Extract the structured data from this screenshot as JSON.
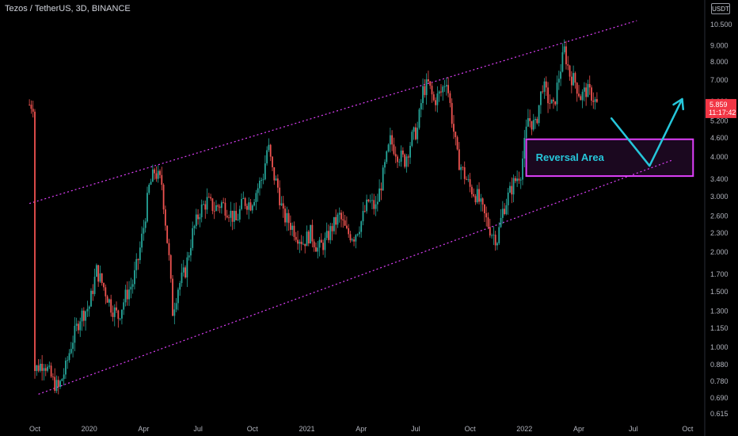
{
  "header": {
    "symbol": "Tezos / TetherUS, 3D, BINANCE",
    "currency": "USDT"
  },
  "chart_data": {
    "type": "candlestick",
    "title": "Tezos / TetherUS, 3D, BINANCE",
    "scale": "log",
    "y_ticks": [
      0.615,
      0.69,
      0.78,
      0.88,
      1.0,
      1.15,
      1.3,
      1.5,
      1.7,
      2.0,
      2.3,
      2.6,
      3.0,
      3.4,
      4.0,
      4.6,
      5.2,
      6.0,
      7.0,
      8.0,
      9.0,
      10.5
    ],
    "y_tick_labels": [
      "0.615",
      "0.690",
      "0.780",
      "0.880",
      "1.000",
      "1.150",
      "1.300",
      "1.500",
      "1.700",
      "2.000",
      "2.300",
      "2.600",
      "3.000",
      "3.400",
      "4.000",
      "4.600",
      "5.200",
      "6.000",
      "7.000",
      "8.000",
      "9.000",
      "10.500"
    ],
    "x_ticks": [
      "Oct",
      "2020",
      "Apr",
      "Jul",
      "Oct",
      "2021",
      "Apr",
      "Jul",
      "Oct",
      "2022",
      "Apr",
      "Jul",
      "Oct"
    ],
    "last_price": "5.859",
    "countdown": "11:17:42",
    "grid": false,
    "colors": {
      "up": "#26a69a",
      "down": "#ef5350",
      "channel": "#e040fb",
      "annotation": "#26c6da",
      "box": "#e040fb",
      "price_tag": "#f23645"
    },
    "series": [
      {
        "month": 0.0,
        "price": 0.85
      },
      {
        "month": 0.5,
        "price": 0.9
      },
      {
        "month": 1.0,
        "price": 0.78
      },
      {
        "month": 1.3,
        "price": 0.74
      },
      {
        "month": 1.7,
        "price": 0.86
      },
      {
        "month": 2.0,
        "price": 1.02
      },
      {
        "month": 2.5,
        "price": 1.25
      },
      {
        "month": 3.0,
        "price": 1.35
      },
      {
        "month": 3.4,
        "price": 1.75
      },
      {
        "month": 3.8,
        "price": 1.55
      },
      {
        "month": 4.2,
        "price": 1.35
      },
      {
        "month": 4.6,
        "price": 1.25
      },
      {
        "month": 5.0,
        "price": 1.45
      },
      {
        "month": 5.4,
        "price": 1.6
      },
      {
        "month": 5.7,
        "price": 1.9
      },
      {
        "month": 6.0,
        "price": 2.4
      },
      {
        "month": 6.3,
        "price": 3.2
      },
      {
        "month": 6.6,
        "price": 3.6
      },
      {
        "month": 7.0,
        "price": 3.3
      },
      {
        "month": 7.2,
        "price": 2.5
      },
      {
        "month": 7.4,
        "price": 1.9
      },
      {
        "month": 7.6,
        "price": 1.3
      },
      {
        "month": 7.9,
        "price": 1.55
      },
      {
        "month": 8.3,
        "price": 1.75
      },
      {
        "month": 8.7,
        "price": 2.3
      },
      {
        "month": 9.1,
        "price": 2.7
      },
      {
        "month": 9.5,
        "price": 2.9
      },
      {
        "month": 9.9,
        "price": 2.75
      },
      {
        "month": 10.3,
        "price": 2.85
      },
      {
        "month": 10.7,
        "price": 2.7
      },
      {
        "month": 11.1,
        "price": 2.5
      },
      {
        "month": 11.5,
        "price": 2.9
      },
      {
        "month": 11.9,
        "price": 2.85
      },
      {
        "month": 12.3,
        "price": 3.2
      },
      {
        "month": 12.6,
        "price": 3.5
      },
      {
        "month": 12.85,
        "price": 4.4
      },
      {
        "month": 13.1,
        "price": 3.6
      },
      {
        "month": 13.4,
        "price": 3.2
      },
      {
        "month": 13.7,
        "price": 2.6
      },
      {
        "month": 14.0,
        "price": 2.5
      },
      {
        "month": 14.4,
        "price": 2.3
      },
      {
        "month": 14.8,
        "price": 2.15
      },
      {
        "month": 15.2,
        "price": 2.3
      },
      {
        "month": 15.6,
        "price": 2.05
      },
      {
        "month": 16.0,
        "price": 2.15
      },
      {
        "month": 16.4,
        "price": 2.4
      },
      {
        "month": 16.8,
        "price": 2.6
      },
      {
        "month": 17.2,
        "price": 2.3
      },
      {
        "month": 17.6,
        "price": 2.25
      },
      {
        "month": 18.0,
        "price": 2.5
      },
      {
        "month": 18.4,
        "price": 2.9
      },
      {
        "month": 18.8,
        "price": 2.75
      },
      {
        "month": 19.2,
        "price": 3.5
      },
      {
        "month": 19.6,
        "price": 4.5
      },
      {
        "month": 20.0,
        "price": 4.1
      },
      {
        "month": 20.4,
        "price": 3.9
      },
      {
        "month": 20.8,
        "price": 4.6
      },
      {
        "month": 21.1,
        "price": 4.9
      },
      {
        "month": 21.4,
        "price": 6.5
      },
      {
        "month": 21.7,
        "price": 6.8
      },
      {
        "month": 22.0,
        "price": 6.0
      },
      {
        "month": 22.4,
        "price": 6.4
      },
      {
        "month": 22.7,
        "price": 7.1
      },
      {
        "month": 23.0,
        "price": 5.3
      },
      {
        "month": 23.3,
        "price": 4.0
      },
      {
        "month": 23.6,
        "price": 3.6
      },
      {
        "month": 24.0,
        "price": 3.2
      },
      {
        "month": 24.4,
        "price": 3.0
      },
      {
        "month": 24.8,
        "price": 2.6
      },
      {
        "month": 25.2,
        "price": 2.3
      },
      {
        "month": 25.5,
        "price": 2.2
      },
      {
        "month": 25.8,
        "price": 2.7
      },
      {
        "month": 26.1,
        "price": 3.0
      },
      {
        "month": 26.4,
        "price": 3.3
      },
      {
        "month": 26.8,
        "price": 3.6
      },
      {
        "month": 27.2,
        "price": 5.3
      },
      {
        "month": 27.6,
        "price": 5.0
      },
      {
        "month": 28.0,
        "price": 6.8
      },
      {
        "month": 28.3,
        "price": 6.1
      },
      {
        "month": 28.6,
        "price": 5.7
      },
      {
        "month": 28.9,
        "price": 7.2
      },
      {
        "month": 29.2,
        "price": 8.7
      },
      {
        "month": 29.5,
        "price": 7.3
      },
      {
        "month": 29.8,
        "price": 6.9
      },
      {
        "month": 30.1,
        "price": 6.2
      },
      {
        "month": 30.4,
        "price": 6.5
      },
      {
        "month": 30.7,
        "price": 6.3
      },
      {
        "month": 31.0,
        "price": 5.86
      }
    ],
    "channel_lines": [
      {
        "name": "upper",
        "start": {
          "month": -0.3,
          "price": 2.85
        },
        "end": {
          "month": 33.2,
          "price": 10.8
        }
      },
      {
        "name": "lower",
        "start": {
          "month": 0.2,
          "price": 0.71
        },
        "end": {
          "month": 35.1,
          "price": 3.9
        }
      }
    ],
    "annotations": [
      {
        "type": "box",
        "label": "Reversal Area",
        "month_range": [
          27.1,
          36.3
        ],
        "price_range": [
          3.48,
          4.55
        ]
      },
      {
        "type": "arrow-path",
        "points": [
          {
            "month": 31.8,
            "price": 5.3
          },
          {
            "month": 33.9,
            "price": 3.75
          },
          {
            "month": 35.7,
            "price": 6.1
          }
        ]
      }
    ]
  }
}
